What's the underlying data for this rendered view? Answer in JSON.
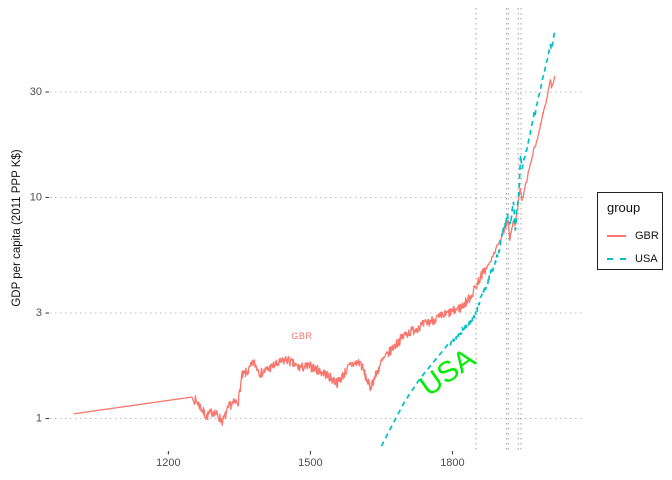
{
  "figure": {
    "background_color": "#ffffff",
    "y_axis_title": "GDP per capita (2011 PPP K$)",
    "legend": {
      "title": "group",
      "position": "right",
      "items": [
        {
          "label": "GBR",
          "color": "#F8766D",
          "line_style": "solid"
        },
        {
          "label": "USA",
          "color": "#00BFC4",
          "line_style": "dashed"
        }
      ]
    }
  },
  "chart_data": {
    "type": "line",
    "title": "",
    "xlabel": "",
    "ylabel": "GDP per capita (2011 PPP K$)",
    "y_scale": "log10",
    "x_domain": [
      950,
      2080
    ],
    "y_domain": [
      0.72,
      72
    ],
    "x_ticks": [
      1200,
      1500,
      1800
    ],
    "y_ticks": [
      1,
      3,
      10,
      30
    ],
    "grid": "dotted horizontal gridlines at y ticks, no vertical gridlines",
    "gridline_color": "#bdbdbd",
    "vline_color": "#9e9e9e",
    "reference_vlines_years": [
      1850,
      1914,
      1918,
      1939,
      1945
    ],
    "axis_text_color": "#4d4d4d",
    "series": [
      {
        "name": "GBR",
        "color": "#F8766D",
        "style": "solid",
        "seed": 7,
        "annual_from": 1252,
        "noise": [
          {
            "from": 1252,
            "to": 1869,
            "amp": 0.05
          },
          {
            "from": 1870,
            "to": 2016,
            "amp": 0.018
          }
        ],
        "keypoints": [
          [
            1000,
            1.05
          ],
          [
            1250,
            1.25
          ],
          [
            1262,
            1.18
          ],
          [
            1280,
            1.02
          ],
          [
            1295,
            1.08
          ],
          [
            1315,
            0.97
          ],
          [
            1330,
            1.15
          ],
          [
            1348,
            1.2
          ],
          [
            1355,
            1.55
          ],
          [
            1370,
            1.65
          ],
          [
            1380,
            1.8
          ],
          [
            1395,
            1.6
          ],
          [
            1420,
            1.72
          ],
          [
            1450,
            1.85
          ],
          [
            1475,
            1.7
          ],
          [
            1500,
            1.72
          ],
          [
            1530,
            1.6
          ],
          [
            1557,
            1.45
          ],
          [
            1585,
            1.75
          ],
          [
            1605,
            1.8
          ],
          [
            1626,
            1.38
          ],
          [
            1640,
            1.6
          ],
          [
            1650,
            1.8
          ],
          [
            1675,
            2.1
          ],
          [
            1700,
            2.4
          ],
          [
            1730,
            2.6
          ],
          [
            1760,
            2.8
          ],
          [
            1800,
            3.05
          ],
          [
            1820,
            3.2
          ],
          [
            1840,
            3.6
          ],
          [
            1860,
            4.4
          ],
          [
            1880,
            5.1
          ],
          [
            1900,
            6.4
          ],
          [
            1913,
            7.3
          ],
          [
            1918,
            7.9
          ],
          [
            1921,
            6.5
          ],
          [
            1925,
            7.2
          ],
          [
            1929,
            7.8
          ],
          [
            1932,
            7.5
          ],
          [
            1938,
            9.0
          ],
          [
            1943,
            11.0
          ],
          [
            1947,
            9.8
          ],
          [
            1950,
            10.3
          ],
          [
            1960,
            12.8
          ],
          [
            1970,
            15.8
          ],
          [
            1973,
            17.2
          ],
          [
            1975,
            16.8
          ],
          [
            1980,
            18.5
          ],
          [
            1990,
            23.5
          ],
          [
            2000,
            28.5
          ],
          [
            2007,
            34.5
          ],
          [
            2009,
            31.5
          ],
          [
            2013,
            32.5
          ],
          [
            2016,
            35.5
          ]
        ]
      },
      {
        "name": "USA",
        "color": "#00BFC4",
        "style": "dashed",
        "seed": 13,
        "annual_from": 1790,
        "noise": [
          {
            "from": 1790,
            "to": 1949,
            "amp": 0.03
          },
          {
            "from": 1950,
            "to": 2016,
            "amp": 0.012
          }
        ],
        "keypoints": [
          [
            1650,
            0.75
          ],
          [
            1680,
            1.0
          ],
          [
            1700,
            1.2
          ],
          [
            1730,
            1.5
          ],
          [
            1760,
            1.8
          ],
          [
            1790,
            2.15
          ],
          [
            1800,
            2.25
          ],
          [
            1820,
            2.5
          ],
          [
            1840,
            2.8
          ],
          [
            1850,
            3.0
          ],
          [
            1860,
            3.5
          ],
          [
            1870,
            3.9
          ],
          [
            1880,
            4.5
          ],
          [
            1890,
            5.0
          ],
          [
            1900,
            5.9
          ],
          [
            1906,
            6.9
          ],
          [
            1913,
            7.9
          ],
          [
            1916,
            8.5
          ],
          [
            1921,
            7.4
          ],
          [
            1929,
            9.5
          ],
          [
            1933,
            7.0
          ],
          [
            1937,
            9.2
          ],
          [
            1940,
            10.2
          ],
          [
            1944,
            15.5
          ],
          [
            1947,
            13.5
          ],
          [
            1950,
            14.5
          ],
          [
            1960,
            17.5
          ],
          [
            1970,
            22.5
          ],
          [
            1973,
            24.5
          ],
          [
            1975,
            24.0
          ],
          [
            1980,
            27.5
          ],
          [
            1990,
            34.0
          ],
          [
            2000,
            42.0
          ],
          [
            2007,
            49.0
          ],
          [
            2009,
            47.0
          ],
          [
            2016,
            56.0
          ]
        ]
      }
    ],
    "annotations": [
      {
        "text": "GBR",
        "x_year": 1482,
        "y_value": 2.35,
        "color": "#F8766D",
        "rotation": 0
      },
      {
        "text": "USA",
        "x_year": 1790,
        "y_value": 1.6,
        "color": "#00EE00",
        "rotation": -35
      }
    ],
    "legend_position": "right"
  }
}
